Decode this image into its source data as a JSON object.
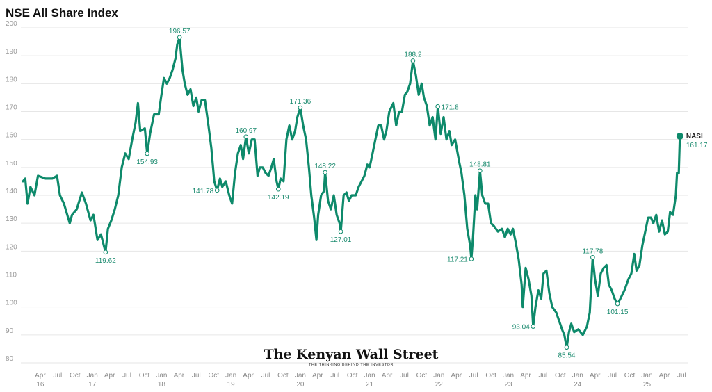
{
  "chart_data": {
    "type": "line",
    "title": "NSE All Share Index",
    "xlabel": "",
    "ylabel": "",
    "x_unit": "months since Jan 2016",
    "ylim": [
      80,
      200
    ],
    "yticks": [
      80,
      90,
      100,
      110,
      120,
      130,
      140,
      150,
      160,
      170,
      180,
      190,
      200
    ],
    "grid": true,
    "xticks": [
      {
        "m": 3,
        "top": "Apr",
        "bottom": "16"
      },
      {
        "m": 6,
        "top": "Jul",
        "bottom": ""
      },
      {
        "m": 9,
        "top": "Oct",
        "bottom": ""
      },
      {
        "m": 12,
        "top": "Jan",
        "bottom": "17"
      },
      {
        "m": 15,
        "top": "Apr",
        "bottom": ""
      },
      {
        "m": 18,
        "top": "Jul",
        "bottom": ""
      },
      {
        "m": 21,
        "top": "Oct",
        "bottom": ""
      },
      {
        "m": 24,
        "top": "Jan",
        "bottom": "18"
      },
      {
        "m": 27,
        "top": "Apr",
        "bottom": ""
      },
      {
        "m": 30,
        "top": "Jul",
        "bottom": ""
      },
      {
        "m": 33,
        "top": "Oct",
        "bottom": ""
      },
      {
        "m": 36,
        "top": "Jan",
        "bottom": "19"
      },
      {
        "m": 39,
        "top": "Apr",
        "bottom": ""
      },
      {
        "m": 42,
        "top": "Jul",
        "bottom": ""
      },
      {
        "m": 45,
        "top": "Oct",
        "bottom": ""
      },
      {
        "m": 48,
        "top": "Jan",
        "bottom": "20"
      },
      {
        "m": 51,
        "top": "Apr",
        "bottom": ""
      },
      {
        "m": 54,
        "top": "Jul",
        "bottom": ""
      },
      {
        "m": 57,
        "top": "Oct",
        "bottom": ""
      },
      {
        "m": 60,
        "top": "Jan",
        "bottom": "21"
      },
      {
        "m": 63,
        "top": "Apr",
        "bottom": ""
      },
      {
        "m": 66,
        "top": "Jul",
        "bottom": ""
      },
      {
        "m": 69,
        "top": "Oct",
        "bottom": ""
      },
      {
        "m": 72,
        "top": "Jan",
        "bottom": "22"
      },
      {
        "m": 75,
        "top": "Apr",
        "bottom": ""
      },
      {
        "m": 78,
        "top": "Jul",
        "bottom": ""
      },
      {
        "m": 81,
        "top": "Oct",
        "bottom": ""
      },
      {
        "m": 84,
        "top": "Jan",
        "bottom": "23"
      },
      {
        "m": 87,
        "top": "Apr",
        "bottom": ""
      },
      {
        "m": 90,
        "top": "Jul",
        "bottom": ""
      },
      {
        "m": 93,
        "top": "Oct",
        "bottom": ""
      },
      {
        "m": 96,
        "top": "Jan",
        "bottom": "24"
      },
      {
        "m": 99,
        "top": "Apr",
        "bottom": ""
      },
      {
        "m": 102,
        "top": "Jul",
        "bottom": ""
      },
      {
        "m": 105,
        "top": "Oct",
        "bottom": ""
      },
      {
        "m": 108,
        "top": "Jan",
        "bottom": "25"
      },
      {
        "m": 111,
        "top": "Apr",
        "bottom": ""
      },
      {
        "m": 114,
        "top": "Jul",
        "bottom": ""
      }
    ],
    "series": [
      {
        "name": "NASI",
        "color": "#0e8a6b",
        "end_value_label": "161.17",
        "points": [
          [
            0,
            145
          ],
          [
            0.4,
            146
          ],
          [
            0.8,
            137
          ],
          [
            1.3,
            143
          ],
          [
            2.0,
            140
          ],
          [
            2.6,
            147
          ],
          [
            3.9,
            146
          ],
          [
            5.1,
            146
          ],
          [
            5.9,
            147
          ],
          [
            6.4,
            140
          ],
          [
            7.1,
            137
          ],
          [
            8.1,
            130
          ],
          [
            8.5,
            133
          ],
          [
            9.3,
            135
          ],
          [
            10.2,
            141
          ],
          [
            10.9,
            137
          ],
          [
            11.7,
            131
          ],
          [
            12.2,
            133
          ],
          [
            12.9,
            124
          ],
          [
            13.5,
            126
          ],
          [
            14.3,
            119.62
          ],
          [
            14.7,
            128
          ],
          [
            15.3,
            131
          ],
          [
            15.9,
            135
          ],
          [
            16.5,
            140
          ],
          [
            17.1,
            150
          ],
          [
            17.7,
            155
          ],
          [
            18.3,
            153
          ],
          [
            18.9,
            160
          ],
          [
            19.5,
            166
          ],
          [
            19.9,
            173
          ],
          [
            20.3,
            163
          ],
          [
            21.1,
            164
          ],
          [
            21.5,
            154.93
          ],
          [
            22.0,
            162
          ],
          [
            22.7,
            169
          ],
          [
            23.5,
            169
          ],
          [
            23.9,
            175
          ],
          [
            24.4,
            182
          ],
          [
            24.9,
            180
          ],
          [
            25.4,
            182
          ],
          [
            25.9,
            185
          ],
          [
            26.4,
            189
          ],
          [
            26.7,
            194
          ],
          [
            27.1,
            196.57
          ],
          [
            27.6,
            185
          ],
          [
            28.0,
            180
          ],
          [
            28.5,
            176
          ],
          [
            29.0,
            178
          ],
          [
            29.5,
            172
          ],
          [
            30.0,
            175
          ],
          [
            30.4,
            170
          ],
          [
            30.9,
            174
          ],
          [
            31.5,
            174
          ],
          [
            32.1,
            165
          ],
          [
            32.6,
            157
          ],
          [
            32.9,
            150
          ],
          [
            33.1,
            145
          ],
          [
            33.6,
            141.78
          ],
          [
            34.1,
            146
          ],
          [
            34.5,
            143
          ],
          [
            35.1,
            145
          ],
          [
            35.7,
            140
          ],
          [
            36.2,
            137
          ],
          [
            36.7,
            148
          ],
          [
            37.2,
            155
          ],
          [
            37.7,
            158
          ],
          [
            38.1,
            153
          ],
          [
            38.6,
            160.97
          ],
          [
            39.1,
            155
          ],
          [
            39.6,
            160
          ],
          [
            40.1,
            160
          ],
          [
            40.6,
            147
          ],
          [
            41.0,
            150
          ],
          [
            41.5,
            150
          ],
          [
            42.0,
            148
          ],
          [
            42.5,
            147
          ],
          [
            43.0,
            150
          ],
          [
            43.4,
            153
          ],
          [
            43.9,
            145
          ],
          [
            44.2,
            142.19
          ],
          [
            44.6,
            146
          ],
          [
            45.1,
            145
          ],
          [
            45.6,
            160
          ],
          [
            46.1,
            165
          ],
          [
            46.6,
            160
          ],
          [
            47.1,
            163
          ],
          [
            47.5,
            168
          ],
          [
            48.0,
            171.36
          ],
          [
            48.5,
            165
          ],
          [
            49.0,
            160
          ],
          [
            49.5,
            150
          ],
          [
            49.9,
            140
          ],
          [
            50.4,
            132
          ],
          [
            50.8,
            124
          ],
          [
            51.1,
            133
          ],
          [
            51.6,
            140
          ],
          [
            52.1,
            141.5
          ],
          [
            52.3,
            148.22
          ],
          [
            52.8,
            138
          ],
          [
            53.3,
            135
          ],
          [
            53.8,
            140
          ],
          [
            54.3,
            133
          ],
          [
            54.8,
            130
          ],
          [
            55.0,
            127.01
          ],
          [
            55.5,
            140
          ],
          [
            56.0,
            141
          ],
          [
            56.4,
            138
          ],
          [
            56.9,
            140
          ],
          [
            57.6,
            140
          ],
          [
            58.1,
            143
          ],
          [
            58.6,
            145
          ],
          [
            59.1,
            147
          ],
          [
            59.6,
            151
          ],
          [
            60.0,
            150
          ],
          [
            60.5,
            155
          ],
          [
            61.0,
            160
          ],
          [
            61.5,
            165
          ],
          [
            62.0,
            165
          ],
          [
            62.5,
            160
          ],
          [
            62.9,
            163
          ],
          [
            63.4,
            170
          ],
          [
            64.1,
            173
          ],
          [
            64.6,
            165
          ],
          [
            65.1,
            170
          ],
          [
            65.6,
            170
          ],
          [
            66.1,
            176
          ],
          [
            66.5,
            177
          ],
          [
            67.0,
            180
          ],
          [
            67.5,
            188.2
          ],
          [
            68.0,
            183
          ],
          [
            68.5,
            176
          ],
          [
            69.0,
            180
          ],
          [
            69.4,
            175
          ],
          [
            69.9,
            172
          ],
          [
            70.4,
            165
          ],
          [
            70.9,
            168
          ],
          [
            71.4,
            160
          ],
          [
            71.8,
            171.8
          ],
          [
            72.3,
            162
          ],
          [
            72.8,
            168
          ],
          [
            73.3,
            160
          ],
          [
            73.8,
            163
          ],
          [
            74.2,
            158
          ],
          [
            74.8,
            160
          ],
          [
            75.5,
            152
          ],
          [
            75.9,
            148
          ],
          [
            76.4,
            140
          ],
          [
            76.9,
            128
          ],
          [
            77.4,
            122
          ],
          [
            77.6,
            117.21
          ],
          [
            77.9,
            125
          ],
          [
            78.3,
            140
          ],
          [
            78.6,
            135
          ],
          [
            79.1,
            148.81
          ],
          [
            79.5,
            140
          ],
          [
            80.0,
            137
          ],
          [
            80.5,
            137
          ],
          [
            81.0,
            130
          ],
          [
            81.5,
            129
          ],
          [
            82.2,
            127
          ],
          [
            82.9,
            128
          ],
          [
            83.4,
            125
          ],
          [
            83.9,
            128
          ],
          [
            84.4,
            126
          ],
          [
            84.8,
            128
          ],
          [
            85.3,
            123
          ],
          [
            85.8,
            117
          ],
          [
            86.3,
            108
          ],
          [
            86.5,
            100
          ],
          [
            87.0,
            114
          ],
          [
            87.5,
            110
          ],
          [
            88.0,
            104
          ],
          [
            88.3,
            93.04
          ],
          [
            88.7,
            100
          ],
          [
            89.2,
            106
          ],
          [
            89.7,
            103
          ],
          [
            90.1,
            112
          ],
          [
            90.6,
            113
          ],
          [
            91.1,
            105
          ],
          [
            91.6,
            100
          ],
          [
            92.3,
            98
          ],
          [
            92.8,
            95
          ],
          [
            93.3,
            92
          ],
          [
            93.7,
            90
          ],
          [
            94.1,
            85.54
          ],
          [
            94.5,
            91
          ],
          [
            94.9,
            94
          ],
          [
            95.4,
            91
          ],
          [
            96.1,
            92
          ],
          [
            96.9,
            90
          ],
          [
            97.6,
            93
          ],
          [
            98.1,
            98
          ],
          [
            98.6,
            117.78
          ],
          [
            99.0,
            110
          ],
          [
            99.5,
            104
          ],
          [
            100.0,
            112
          ],
          [
            100.5,
            114
          ],
          [
            101.0,
            115
          ],
          [
            101.4,
            108
          ],
          [
            101.9,
            106
          ],
          [
            102.4,
            103
          ],
          [
            102.9,
            101.15
          ],
          [
            103.4,
            103
          ],
          [
            104.1,
            106
          ],
          [
            104.8,
            110
          ],
          [
            105.3,
            112
          ],
          [
            105.8,
            119
          ],
          [
            106.2,
            113
          ],
          [
            106.7,
            115
          ],
          [
            107.2,
            122
          ],
          [
            107.7,
            127
          ],
          [
            108.2,
            132
          ],
          [
            108.7,
            132
          ],
          [
            109.1,
            130
          ],
          [
            109.6,
            133
          ],
          [
            110.1,
            127
          ],
          [
            110.6,
            131
          ],
          [
            111.1,
            126
          ],
          [
            111.6,
            127
          ],
          [
            112.0,
            134
          ],
          [
            112.5,
            133
          ],
          [
            113.0,
            140
          ],
          [
            113.2,
            148
          ],
          [
            113.5,
            148
          ],
          [
            113.7,
            161.17
          ]
        ]
      }
    ],
    "annotations": [
      {
        "m": 14.3,
        "value": 119.62,
        "label": "119.62",
        "pos": "below"
      },
      {
        "m": 21.5,
        "value": 154.93,
        "label": "154.93",
        "pos": "below"
      },
      {
        "m": 27.1,
        "value": 196.57,
        "label": "196.57",
        "pos": "above"
      },
      {
        "m": 33.6,
        "value": 141.78,
        "label": "141.78",
        "pos": "left"
      },
      {
        "m": 38.6,
        "value": 160.97,
        "label": "160.97",
        "pos": "above"
      },
      {
        "m": 44.2,
        "value": 142.19,
        "label": "142.19",
        "pos": "below"
      },
      {
        "m": 48.0,
        "value": 171.36,
        "label": "171.36",
        "pos": "above"
      },
      {
        "m": 52.3,
        "value": 148.22,
        "label": "148.22",
        "pos": "above"
      },
      {
        "m": 55.0,
        "value": 127.01,
        "label": "127.01",
        "pos": "below"
      },
      {
        "m": 67.5,
        "value": 188.2,
        "label": "188.2",
        "pos": "above"
      },
      {
        "m": 71.8,
        "value": 171.8,
        "label": "171.8",
        "pos": "right"
      },
      {
        "m": 77.6,
        "value": 117.21,
        "label": "117.21",
        "pos": "left"
      },
      {
        "m": 79.1,
        "value": 148.81,
        "label": "148.81",
        "pos": "above"
      },
      {
        "m": 88.3,
        "value": 93.04,
        "label": "93.04",
        "pos": "left"
      },
      {
        "m": 94.1,
        "value": 85.54,
        "label": "85.54",
        "pos": "below"
      },
      {
        "m": 98.6,
        "value": 117.78,
        "label": "117.78",
        "pos": "above"
      },
      {
        "m": 102.9,
        "value": 101.15,
        "label": "101.15",
        "pos": "below"
      }
    ]
  },
  "branding": {
    "logo_text": "The Kenyan Wall Street",
    "tagline": "THE THINKING BEHIND THE INVESTOR"
  }
}
